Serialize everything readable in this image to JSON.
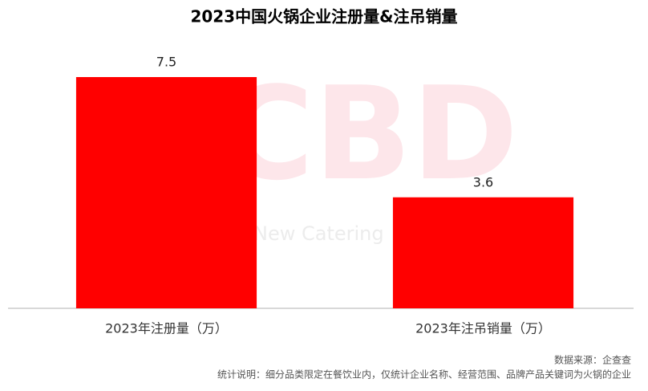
{
  "chart_data": {
    "type": "bar",
    "title": "2023中国火锅企业注册量&注吊销量",
    "categories": [
      "2023年注册量（万）",
      "2023年注吊销量（万）"
    ],
    "values": [
      7.5,
      3.6
    ],
    "color": "#ff0000",
    "watermark": [
      "CBD",
      "New Catering"
    ],
    "source": "数据来源：企查查",
    "note": "统计说明：细分品类限定在餐饮业内，仅统计企业名称、经营范围、品牌产品关键词为火锅的企业"
  }
}
